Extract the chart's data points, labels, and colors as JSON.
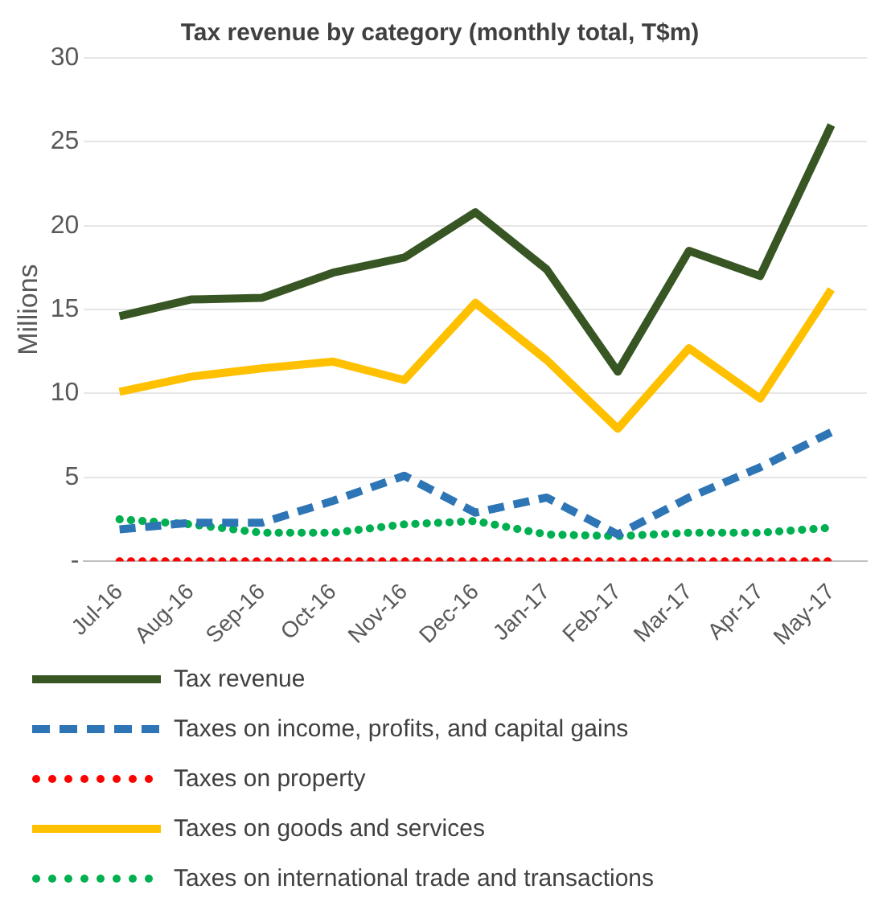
{
  "chart_data": {
    "type": "line",
    "title": "Tax revenue by category (monthly total, T$m)",
    "ylabel": "Millions",
    "categories": [
      "Jul-16",
      "Aug-16",
      "Sep-16",
      "Oct-16",
      "Nov-16",
      "Dec-16",
      "Jan-17",
      "Feb-17",
      "Mar-17",
      "Apr-17",
      "May-17"
    ],
    "series": [
      {
        "name": "Tax revenue",
        "color": "#375623",
        "line_style": "solid",
        "values": [
          14.6,
          15.6,
          15.7,
          17.2,
          18.1,
          20.8,
          17.4,
          11.3,
          18.5,
          17.0,
          26.0
        ]
      },
      {
        "name": "Taxes on income, profits, and capital gains",
        "color": "#2e75b6",
        "line_style": "dashed",
        "values": [
          1.9,
          2.3,
          2.3,
          3.6,
          5.1,
          2.9,
          3.8,
          1.6,
          3.8,
          5.6,
          7.7
        ]
      },
      {
        "name": "Taxes on property",
        "color": "#ff0000",
        "line_style": "dotted",
        "values": [
          0,
          0,
          0,
          0,
          0,
          0,
          0,
          0,
          0,
          0,
          0
        ]
      },
      {
        "name": "Taxes on goods and services",
        "color": "#ffc000",
        "line_style": "solid",
        "values": [
          10.1,
          11.0,
          11.5,
          11.9,
          10.8,
          15.4,
          12.0,
          7.9,
          12.7,
          9.7,
          16.2
        ]
      },
      {
        "name": "Taxes on international trade and transactions",
        "color": "#00b050",
        "line_style": "dotted",
        "values": [
          2.5,
          2.2,
          1.7,
          1.7,
          2.2,
          2.4,
          1.6,
          1.5,
          1.7,
          1.7,
          2.0
        ]
      }
    ],
    "ylim": [
      0,
      30
    ],
    "yticks": [
      {
        "value": 0,
        "label": "-"
      },
      5,
      10,
      15,
      20,
      25,
      30
    ],
    "grid": "y",
    "legend": "bottom",
    "marker": "none"
  }
}
